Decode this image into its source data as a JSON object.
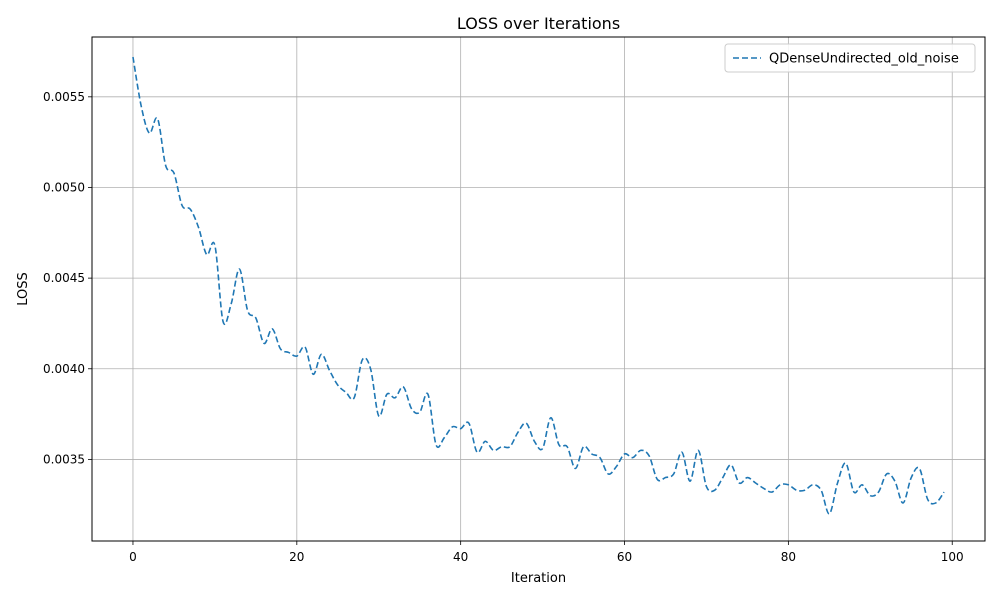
{
  "chart_data": {
    "type": "line",
    "title": "LOSS over Iterations",
    "xlabel": "Iteration",
    "ylabel": "LOSS",
    "xlim": [
      -5,
      104
    ],
    "ylim": [
      0.00305,
      0.00583
    ],
    "x_ticks": [
      0,
      20,
      40,
      60,
      80,
      100
    ],
    "y_ticks": [
      0.0035,
      0.004,
      0.0045,
      0.005,
      0.0055
    ],
    "y_tick_labels": [
      "0.0035",
      "0.0040",
      "0.0045",
      "0.0050",
      "0.0055"
    ],
    "grid": true,
    "legend_position": "top-right",
    "series": [
      {
        "name": "QDenseUndirected_old_noise",
        "color": "#1f77b4",
        "style": "dashed",
        "x": [
          0,
          1,
          2,
          3,
          4,
          5,
          6,
          7,
          8,
          9,
          10,
          11,
          12,
          13,
          14,
          15,
          16,
          17,
          18,
          19,
          20,
          21,
          22,
          23,
          24,
          25,
          26,
          27,
          28,
          29,
          30,
          31,
          32,
          33,
          34,
          35,
          36,
          37,
          38,
          39,
          40,
          41,
          42,
          43,
          44,
          45,
          46,
          47,
          48,
          49,
          50,
          51,
          52,
          53,
          54,
          55,
          56,
          57,
          58,
          59,
          60,
          61,
          62,
          63,
          64,
          65,
          66,
          67,
          68,
          69,
          70,
          71,
          72,
          73,
          74,
          75,
          76,
          77,
          78,
          79,
          80,
          81,
          82,
          83,
          84,
          85,
          86,
          87,
          88,
          89,
          90,
          91,
          92,
          93,
          94,
          95,
          96,
          97,
          98,
          99
        ],
        "values": [
          0.00572,
          0.00545,
          0.0053,
          0.00538,
          0.00512,
          0.00508,
          0.0049,
          0.00488,
          0.00478,
          0.00463,
          0.00468,
          0.00426,
          0.00436,
          0.00455,
          0.00432,
          0.00428,
          0.00414,
          0.00422,
          0.00411,
          0.00409,
          0.00407,
          0.00412,
          0.00397,
          0.00408,
          0.00399,
          0.00391,
          0.00387,
          0.00384,
          0.00405,
          0.004,
          0.00374,
          0.00386,
          0.00384,
          0.0039,
          0.00378,
          0.00376,
          0.00386,
          0.00358,
          0.00362,
          0.00368,
          0.00367,
          0.0037,
          0.00354,
          0.0036,
          0.00355,
          0.00357,
          0.00357,
          0.00365,
          0.0037,
          0.0036,
          0.00356,
          0.00373,
          0.00358,
          0.00357,
          0.00345,
          0.00357,
          0.00353,
          0.00351,
          0.00342,
          0.00346,
          0.00353,
          0.00351,
          0.00355,
          0.00352,
          0.00339,
          0.0034,
          0.00342,
          0.00354,
          0.00338,
          0.00355,
          0.00335,
          0.00333,
          0.0034,
          0.00347,
          0.00337,
          0.0034,
          0.00337,
          0.00334,
          0.00332,
          0.00336,
          0.00336,
          0.00333,
          0.00333,
          0.00336,
          0.00333,
          0.0032,
          0.00337,
          0.00348,
          0.00332,
          0.00336,
          0.0033,
          0.00332,
          0.00342,
          0.00338,
          0.00326,
          0.0034,
          0.00345,
          0.00328,
          0.00326,
          0.00332
        ]
      }
    ]
  }
}
